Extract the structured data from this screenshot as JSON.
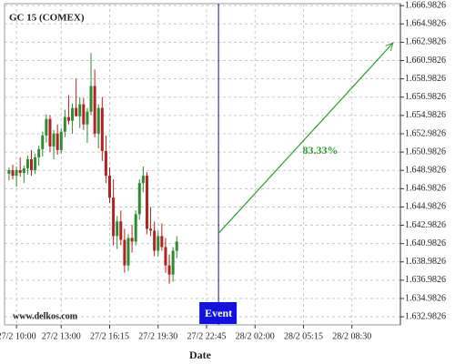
{
  "chart_data": {
    "type": "candlestick",
    "title": "GC 15 (COMEX)",
    "watermark": "www.delkos.com",
    "x_label": "Date",
    "categories": [
      null,
      null,
      null,
      null,
      null,
      null,
      null,
      null,
      null,
      null,
      null,
      null,
      null,
      null,
      null,
      null,
      null,
      null,
      null,
      null,
      null,
      null,
      null,
      null,
      null,
      null,
      null,
      null,
      null,
      null,
      null,
      null,
      null,
      null,
      null,
      null,
      null,
      null,
      null,
      null,
      null,
      null,
      null,
      null,
      null,
      null
    ],
    "open": [
      1648.6,
      1649.0,
      1648.4,
      1649.0,
      1648.7,
      1649.2,
      1650.2,
      1649.0,
      1650.4,
      1651.3,
      1652.8,
      1654.6,
      1651.6,
      1653.0,
      1651.2,
      1653.2,
      1654.8,
      1654.4,
      1655.8,
      1654.9,
      1656.2,
      1654.0,
      1655.4,
      1658.2,
      1653.0,
      1655.8,
      1651.1,
      1648.4,
      1646.0,
      1641.8,
      1643.4,
      1641.4,
      1638.6,
      1641.6,
      1641.2,
      1644.2,
      1647.6,
      1648.4,
      1642.6,
      1642.4,
      1640.2,
      1641.8,
      1640.6,
      1638.6,
      1637.6,
      1640.2
    ],
    "high": [
      1649.3,
      1649.6,
      1649.4,
      1650.4,
      1649.5,
      1650.6,
      1651.2,
      1650.8,
      1651.7,
      1653.2,
      1655.1,
      1655.0,
      1653.4,
      1654.0,
      1653.6,
      1655.6,
      1657.2,
      1656.3,
      1659.0,
      1657.0,
      1656.9,
      1655.8,
      1661.8,
      1660.0,
      1656.2,
      1657.0,
      1652.8,
      1649.3,
      1648.0,
      1644.0,
      1644.6,
      1642.6,
      1642.0,
      1643.0,
      1644.6,
      1648.0,
      1649.4,
      1648.8,
      1645.0,
      1643.4,
      1642.4,
      1643.2,
      1641.6,
      1639.8,
      1640.6,
      1641.8
    ],
    "low": [
      1647.9,
      1648.0,
      1647.2,
      1648.3,
      1647.6,
      1648.5,
      1648.4,
      1648.6,
      1649.5,
      1650.5,
      1652.0,
      1651.0,
      1650.2,
      1650.7,
      1650.8,
      1652.6,
      1654.0,
      1653.0,
      1654.9,
      1653.6,
      1653.4,
      1652.0,
      1655.0,
      1652.6,
      1651.4,
      1650.0,
      1647.6,
      1645.4,
      1640.8,
      1640.4,
      1640.8,
      1637.8,
      1638.0,
      1640.0,
      1640.8,
      1643.6,
      1646.6,
      1642.0,
      1641.8,
      1639.6,
      1639.6,
      1640.2,
      1637.8,
      1636.6,
      1636.8,
      1639.4
    ],
    "close": [
      1649.0,
      1648.4,
      1649.0,
      1648.7,
      1649.2,
      1650.2,
      1649.0,
      1650.4,
      1651.3,
      1652.8,
      1654.6,
      1651.6,
      1653.0,
      1651.2,
      1653.2,
      1654.8,
      1654.4,
      1655.8,
      1654.9,
      1656.2,
      1654.0,
      1655.4,
      1658.2,
      1653.0,
      1655.8,
      1651.1,
      1648.4,
      1646.0,
      1641.8,
      1643.4,
      1641.4,
      1638.6,
      1641.6,
      1641.2,
      1644.2,
      1647.6,
      1648.4,
      1642.6,
      1642.4,
      1640.2,
      1641.8,
      1640.6,
      1638.6,
      1637.6,
      1640.2,
      1641.2
    ],
    "up_color": "#2e8b2e",
    "down_color": "#b22222",
    "xlim": [
      -1.2,
      105
    ],
    "xticks": [
      {
        "value": 2,
        "label": "27/2 10:00"
      },
      {
        "value": 14,
        "label": "27/2 13:00"
      },
      {
        "value": 27,
        "label": "27/2 16:15"
      },
      {
        "value": 40,
        "label": "27/2 19:30"
      },
      {
        "value": 53,
        "label": "27/2 22:45"
      },
      {
        "value": 66,
        "label": "28/2 02:00"
      },
      {
        "value": 79,
        "label": "28/2 05:15"
      },
      {
        "value": 92,
        "label": "28/2 08:30"
      }
    ],
    "ylim": [
      1632.1,
      1667.2
    ],
    "yticks": [
      {
        "value": 1632.9826,
        "label": "1.632.9826"
      },
      {
        "value": 1634.9826,
        "label": "1.634.9826"
      },
      {
        "value": 1636.9826,
        "label": "1.636.9826"
      },
      {
        "value": 1638.9826,
        "label": "1.638.9826"
      },
      {
        "value": 1640.9826,
        "label": "1.640.9826"
      },
      {
        "value": 1642.9826,
        "label": "1.642.9826"
      },
      {
        "value": 1644.9826,
        "label": "1.644.9826"
      },
      {
        "value": 1646.9826,
        "label": "1.646.9826"
      },
      {
        "value": 1648.9826,
        "label": "1.648.9826"
      },
      {
        "value": 1650.9826,
        "label": "1.650.9826"
      },
      {
        "value": 1652.9826,
        "label": "1.652.9826"
      },
      {
        "value": 1654.9826,
        "label": "1.654.9826"
      },
      {
        "value": 1656.9826,
        "label": "1.656.9826"
      },
      {
        "value": 1658.9826,
        "label": "1.658.9826"
      },
      {
        "value": 1660.9826,
        "label": "1.660.9826"
      },
      {
        "value": 1662.9826,
        "label": "1.662.9826"
      },
      {
        "value": 1664.9826,
        "label": "1.664.9826"
      },
      {
        "value": 1666.9826,
        "label": "1.666.9826"
      }
    ],
    "grid": true,
    "event": {
      "x": 56.2,
      "label": "Event",
      "color": "#1212e0",
      "line_color": "#1a1a6e"
    },
    "arrow": {
      "x": [
        56.2,
        103
      ],
      "y": [
        1642.1,
        1662.9
      ],
      "label": "83.33%",
      "color": "#2a9d2a"
    }
  }
}
